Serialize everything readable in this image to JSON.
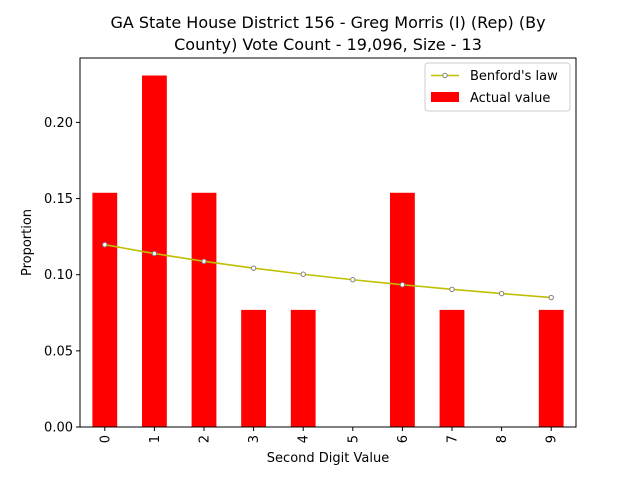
{
  "chart_data": {
    "type": "bar",
    "title_lines": [
      "GA State House District 156 - Greg Morris (I) (Rep) (By",
      "County) Vote Count - 19,096, Size - 13"
    ],
    "xlabel": "Second Digit Value",
    "ylabel": "Proportion",
    "categories": [
      "0",
      "1",
      "2",
      "3",
      "4",
      "5",
      "6",
      "7",
      "8",
      "9"
    ],
    "ylim": [
      0,
      0.2423
    ],
    "yticks": [
      0.0,
      0.05,
      0.1,
      0.15,
      0.2
    ],
    "ytick_labels": [
      "0.00",
      "0.05",
      "0.10",
      "0.15",
      "0.20"
    ],
    "series": [
      {
        "name": "Actual value",
        "kind": "bar",
        "color": "#ff0000",
        "values": [
          0.1538,
          0.2308,
          0.1538,
          0.0769,
          0.0769,
          0.0,
          0.1538,
          0.0769,
          0.0,
          0.0769
        ]
      },
      {
        "name": "Benford's law",
        "kind": "line",
        "color": "#bfbf00",
        "marker_color": "#808080",
        "values": [
          0.1197,
          0.1139,
          0.1088,
          0.1043,
          0.1003,
          0.0967,
          0.0934,
          0.0904,
          0.0876,
          0.085
        ]
      }
    ],
    "legend": {
      "position": "top-right",
      "entries": [
        "Benford's law",
        "Actual value"
      ]
    },
    "grid": false
  }
}
